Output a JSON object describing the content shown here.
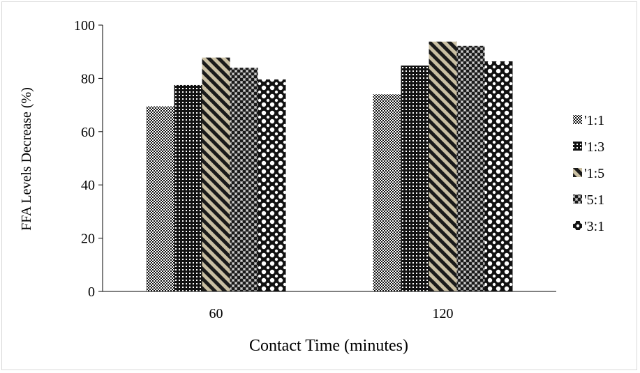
{
  "chart_data": {
    "type": "bar",
    "title": "",
    "xlabel": "Contact Time (minutes)",
    "ylabel": "FFA Levels Decrease (%)",
    "ylim": [
      0,
      100
    ],
    "yticks": [
      "0",
      "20",
      "40",
      "60",
      "80",
      "100"
    ],
    "categories": [
      "60",
      "120"
    ],
    "grid": false,
    "legend_position": "right",
    "series": [
      {
        "name": "'1:1",
        "values": [
          69.5,
          74.0
        ],
        "pattern": "checker",
        "color": "#111111"
      },
      {
        "name": "'1:3",
        "values": [
          77.5,
          84.8
        ],
        "pattern": "dots",
        "color": "#111111"
      },
      {
        "name": "'1:5",
        "values": [
          87.8,
          93.8
        ],
        "pattern": "diagonal",
        "color": "#c9bfa3"
      },
      {
        "name": "'5:1",
        "values": [
          84.0,
          92.2
        ],
        "pattern": "grey-check",
        "color": "#8a8a8a"
      },
      {
        "name": "'3:1",
        "values": [
          79.6,
          86.4
        ],
        "pattern": "bigdots",
        "color": "#111111"
      }
    ]
  }
}
